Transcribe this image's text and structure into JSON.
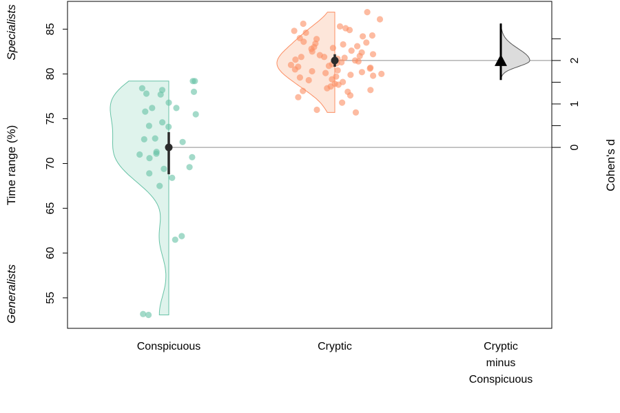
{
  "chart_data": {
    "type": "estimation-plot",
    "ylabel": "Time range (%)",
    "ylim": [
      51.6,
      88.1
    ],
    "yticks": [
      55,
      60,
      65,
      70,
      75,
      80,
      85
    ],
    "right_axis": {
      "label": "Cohen's d",
      "ticks": [
        0,
        1,
        2
      ],
      "minor_ticks": [
        0.5,
        1.5,
        2.5
      ],
      "zero_at_y": 71.8,
      "units_per_y": 4.85
    },
    "annotations": {
      "top": "Specialists",
      "bottom": "Generalists"
    },
    "groups": [
      {
        "name": "Conspicuous",
        "color": "#66c2a5",
        "fill": "#dff3ec",
        "mean": 71.8,
        "ci": [
          68.8,
          73.5
        ],
        "values": [
          79.2,
          79.2,
          78.4,
          78.2,
          78.0,
          77.8,
          77.7,
          76.8,
          76.2,
          76.2,
          75.8,
          75.5,
          74.6,
          74.2,
          74.1,
          72.8,
          72.7,
          72.4,
          71.3,
          71.1,
          71.0,
          70.7,
          70.6,
          69.6,
          69.4,
          68.9,
          68.4,
          67.5,
          61.9,
          61.5,
          53.2,
          53.1
        ]
      },
      {
        "name": "Cryptic",
        "color": "#fc8d62",
        "fill": "#fde6da",
        "mean": 81.5,
        "ci": [
          80.8,
          82.2
        ],
        "values": [
          86.9,
          86.1,
          85.6,
          85.3,
          85.1,
          84.9,
          84.8,
          84.6,
          84.3,
          84.2,
          84.0,
          83.9,
          83.6,
          83.5,
          83.4,
          83.3,
          83.1,
          83.0,
          82.9,
          82.8,
          82.6,
          82.5,
          82.4,
          82.2,
          82.1,
          82.0,
          81.9,
          81.9,
          81.8,
          81.7,
          81.6,
          81.5,
          81.4,
          81.3,
          81.2,
          81.1,
          81.0,
          80.9,
          80.8,
          80.7,
          80.6,
          80.5,
          80.4,
          80.3,
          80.2,
          80.1,
          80.0,
          79.9,
          79.8,
          79.7,
          79.6,
          79.4,
          79.3,
          79.1,
          78.9,
          78.8,
          78.6,
          78.4,
          78.2,
          78.1,
          78.0,
          77.6,
          77.4,
          76.8,
          76.0,
          75.7
        ]
      }
    ],
    "effect": {
      "name": "Cryptic minus Conspicuous",
      "label_lines": [
        "Cryptic",
        "minus",
        "Conspicuous"
      ],
      "estimate": 2.0,
      "ci": [
        1.55,
        2.85
      ],
      "distribution_range": [
        1.6,
        2.85
      ]
    }
  }
}
